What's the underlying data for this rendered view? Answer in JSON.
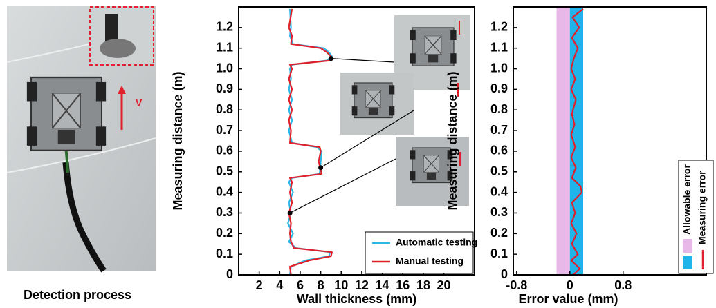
{
  "photo": {
    "label": "V",
    "caption": "Detection process"
  },
  "chart_data": [
    {
      "type": "line",
      "x_label": "Wall thickness (mm)",
      "y_label": "Measuring distance (m)",
      "y": [
        0,
        0.04,
        0.07,
        0.09,
        0.11,
        0.13,
        0.16,
        0.2,
        0.25,
        0.3,
        0.35,
        0.4,
        0.45,
        0.47,
        0.49,
        0.55,
        0.6,
        0.62,
        0.64,
        0.7,
        0.75,
        0.8,
        0.85,
        0.9,
        0.95,
        1.0,
        1.02,
        1.04,
        1.06,
        1.08,
        1.1,
        1.12,
        1.16,
        1.2,
        1.29
      ],
      "series": [
        {
          "name": "Automatic testing",
          "color": "#29b6e8",
          "values": [
            5.0,
            5.1,
            6.5,
            8.8,
            8.9,
            5.6,
            4.9,
            5.3,
            4.8,
            5.1,
            4.9,
            5.3,
            4.9,
            5.2,
            7.9,
            8.0,
            8.1,
            7.6,
            5.2,
            4.9,
            5.2,
            4.9,
            5.2,
            4.9,
            5.1,
            5.0,
            5.2,
            8.6,
            9.1,
            8.8,
            8.3,
            5.3,
            5.0,
            5.1,
            5.0
          ]
        },
        {
          "name": "Manual testing",
          "color": "#e0202a",
          "values": [
            5.1,
            5.0,
            6.9,
            9.0,
            9.1,
            5.4,
            5.1,
            5.0,
            5.1,
            4.9,
            5.2,
            5.0,
            5.2,
            5.0,
            8.1,
            7.8,
            8.0,
            7.9,
            5.0,
            5.1,
            4.9,
            5.2,
            4.9,
            5.2,
            4.9,
            5.2,
            5.0,
            8.9,
            9.0,
            8.6,
            8.0,
            5.1,
            5.2,
            4.9,
            5.2
          ]
        }
      ],
      "highlights": {
        "x": [
          9,
          8,
          5
        ],
        "y": [
          1.05,
          0.52,
          0.3
        ]
      },
      "xlim": [
        0,
        23
      ],
      "xticks": [
        2,
        4,
        6,
        8,
        10,
        12,
        14,
        16,
        18,
        20
      ],
      "ylim": [
        0,
        1.3
      ],
      "yticks": [
        0,
        0.1,
        0.2,
        0.3,
        0.4,
        0.5,
        0.6,
        0.7,
        0.8,
        0.9,
        {
          "value": 1,
          "label": "1.0"
        },
        1.1,
        1.2
      ],
      "legend": "lower right"
    },
    {
      "type": "line",
      "x_label": "Error value (mm)",
      "y_label": "Measuring distance (m)",
      "y": [
        0,
        0.03,
        0.07,
        0.1,
        0.15,
        0.2,
        0.25,
        0.3,
        0.35,
        0.4,
        0.43,
        0.47,
        0.52,
        0.57,
        0.62,
        0.68,
        0.73,
        0.78,
        0.85,
        0.9,
        0.95,
        1.0,
        1.05,
        1.1,
        1.15,
        1.2,
        1.25,
        1.29
      ],
      "bands": {
        "name": "Allowable error",
        "colors": [
          "#e8b8e8",
          "#1fb4ea"
        ],
        "ranges": [
          [
            -0.2,
            0
          ],
          [
            0,
            0.2
          ]
        ]
      },
      "series": [
        {
          "name": "Measuring error",
          "color": "#e0202a",
          "values": [
            0.05,
            0.15,
            0.02,
            0.12,
            0.03,
            0.1,
            0.02,
            0.08,
            0.03,
            0.18,
            0.16,
            0.03,
            0.09,
            0.02,
            0.08,
            0.02,
            0.07,
            0.03,
            0.09,
            0.02,
            0.08,
            0.02,
            0.06,
            0.12,
            0.03,
            0.14,
            0.04,
            0.2
          ]
        }
      ],
      "xlim": [
        -0.85,
        2.05
      ],
      "xticks": [
        -0.8,
        0,
        0.8
      ],
      "ylim": [
        0,
        1.3
      ],
      "yticks": [
        0,
        0.1,
        0.2,
        0.3,
        0.4,
        0.5,
        0.6,
        0.7,
        0.8,
        0.9,
        {
          "value": 1,
          "label": "1.0"
        },
        1.1,
        1.2
      ],
      "legend": "lower right"
    }
  ]
}
